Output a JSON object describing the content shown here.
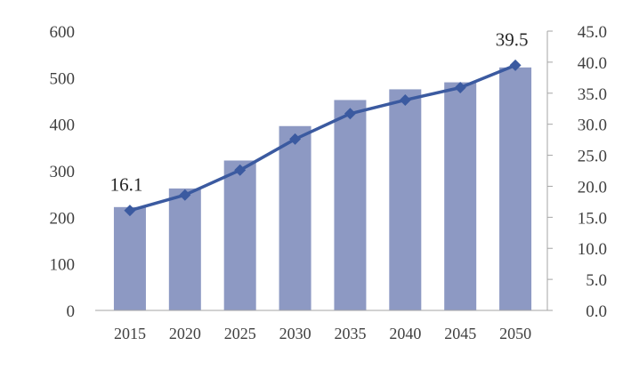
{
  "chart_data": {
    "type": "bar",
    "categories": [
      "2015",
      "2020",
      "2025",
      "2030",
      "2035",
      "2040",
      "2045",
      "2050"
    ],
    "series": [
      {
        "type": "bar",
        "axis": "left",
        "values": [
          222,
          262,
          322,
          396,
          452,
          475,
          490,
          522
        ],
        "color": "#8d99c3"
      },
      {
        "type": "line",
        "axis": "right",
        "marker": "diamond",
        "values": [
          16.1,
          18.6,
          22.6,
          27.6,
          31.7,
          33.9,
          35.9,
          39.5
        ],
        "color": "#3b5aa0"
      }
    ],
    "data_labels": [
      {
        "series": 1,
        "index": 0,
        "text": "16.1"
      },
      {
        "series": 1,
        "index": 7,
        "text": "39.5"
      }
    ],
    "left_axis": {
      "ylim": [
        0,
        600
      ],
      "ticks": [
        "0",
        "100",
        "200",
        "300",
        "400",
        "500",
        "600"
      ]
    },
    "right_axis": {
      "ylim": [
        0,
        45
      ],
      "ticks": [
        "0.0",
        "5.0",
        "10.0",
        "15.0",
        "20.0",
        "25.0",
        "30.0",
        "35.0",
        "40.0",
        "45.0"
      ]
    },
    "grid": false,
    "legend": "none",
    "title": "",
    "xlabel": "",
    "ylabel": ""
  }
}
